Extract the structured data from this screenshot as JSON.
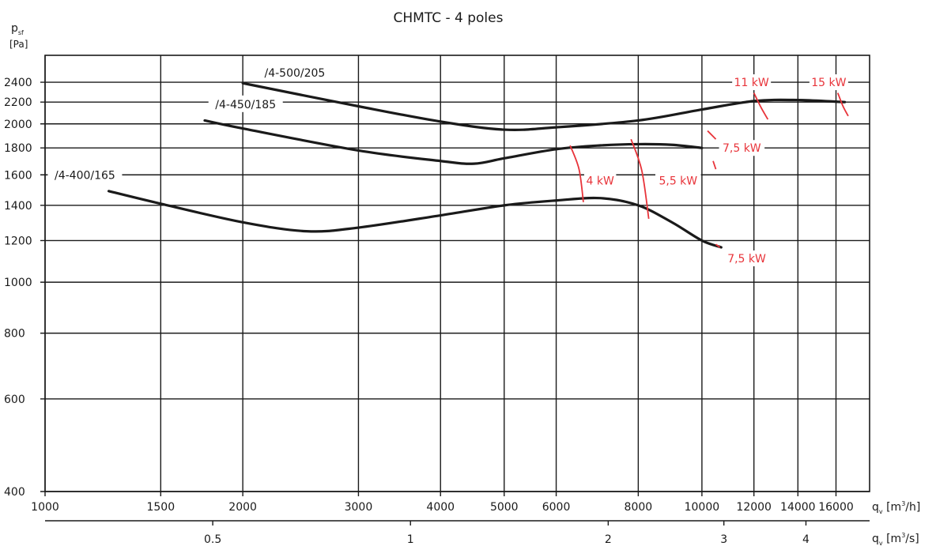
{
  "chart_data": {
    "type": "line",
    "title": "CHMTC  -  4 poles",
    "y_axis": {
      "symbol": "p",
      "subscript": "sf",
      "unit": "[Pa]",
      "scale": "log",
      "range": [
        400,
        2700
      ],
      "ticks": [
        400,
        600,
        800,
        1000,
        1200,
        1400,
        1600,
        1800,
        2000,
        2200,
        2400
      ]
    },
    "x_axis": {
      "symbol": "q",
      "subscript": "v",
      "unit_pre": "[m",
      "unit_sup": "3",
      "unit_post": "/h]",
      "scale": "log",
      "range": [
        1000,
        18000
      ],
      "ticks": [
        1000,
        1500,
        2000,
        3000,
        4000,
        5000,
        6000,
        8000,
        10000,
        12000,
        14000,
        16000
      ]
    },
    "x2_axis": {
      "symbol": "q",
      "subscript": "v",
      "unit_pre": "[m",
      "unit_sup": "3",
      "unit_post": "/s]",
      "ticks": [
        0.5,
        1,
        2,
        3,
        4
      ],
      "tick_labels": [
        "0.5",
        "1",
        "2",
        "3",
        "4"
      ]
    },
    "grid": true,
    "series": [
      {
        "name": "/4-500/205",
        "color": "#1a1a1a",
        "points": [
          [
            2000,
            2390
          ],
          [
            3000,
            2160
          ],
          [
            4000,
            2020
          ],
          [
            5000,
            1950
          ],
          [
            6000,
            1970
          ],
          [
            8000,
            2030
          ],
          [
            10000,
            2130
          ],
          [
            12000,
            2210
          ],
          [
            14000,
            2220
          ],
          [
            16500,
            2200
          ]
        ]
      },
      {
        "name": "/4-450/185",
        "color": "#1a1a1a",
        "points": [
          [
            1750,
            2030
          ],
          [
            2000,
            1960
          ],
          [
            3000,
            1780
          ],
          [
            4000,
            1700
          ],
          [
            4500,
            1680
          ],
          [
            5000,
            1720
          ],
          [
            6000,
            1790
          ],
          [
            7000,
            1820
          ],
          [
            8000,
            1830
          ],
          [
            9000,
            1825
          ],
          [
            10000,
            1800
          ]
        ]
      },
      {
        "name": "/4-400/165",
        "color": "#1a1a1a",
        "points": [
          [
            1250,
            1490
          ],
          [
            1500,
            1410
          ],
          [
            2000,
            1300
          ],
          [
            2500,
            1250
          ],
          [
            3000,
            1270
          ],
          [
            4000,
            1340
          ],
          [
            5000,
            1400
          ],
          [
            6000,
            1430
          ],
          [
            7000,
            1445
          ],
          [
            8000,
            1400
          ],
          [
            9000,
            1300
          ],
          [
            10000,
            1200
          ],
          [
            10700,
            1165
          ]
        ]
      }
    ],
    "motor_lines": [
      {
        "label": "4 kW",
        "color": "#e8343a",
        "points": [
          [
            6300,
            1820
          ],
          [
            6500,
            1640
          ],
          [
            6600,
            1420
          ]
        ],
        "label_at": [
          7000,
          1560
        ]
      },
      {
        "label": "5,5 kW",
        "color": "#e8343a",
        "points": [
          [
            7800,
            1870
          ],
          [
            8100,
            1630
          ],
          [
            8300,
            1320
          ]
        ],
        "label_at": [
          9200,
          1560
        ]
      },
      {
        "label": "7,5 kW",
        "color": "#e8343a",
        "points": [
          [
            10200,
            1940
          ],
          [
            10500,
            1870
          ]
        ],
        "label_at": [
          11500,
          1800
        ]
      },
      {
        "label": "7,5 kW",
        "color": "#e8343a",
        "points": [
          [
            10400,
            1700
          ],
          [
            10500,
            1640
          ]
        ],
        "label_at": null
      },
      {
        "label": "7,5 kW",
        "color": "#e8343a",
        "points": [
          [
            10500,
            1180
          ],
          [
            10650,
            1165
          ]
        ],
        "label_at": [
          11700,
          1110
        ]
      },
      {
        "label": "11 kW",
        "color": "#e8343a",
        "points": [
          [
            12000,
            2290
          ],
          [
            12300,
            2150
          ],
          [
            12600,
            2040
          ]
        ],
        "label_at": [
          11900,
          2400
        ]
      },
      {
        "label": "15 kW",
        "color": "#e8343a",
        "points": [
          [
            16100,
            2290
          ],
          [
            16400,
            2160
          ],
          [
            16700,
            2070
          ]
        ],
        "label_at": [
          15600,
          2400
        ]
      }
    ],
    "series_labels": [
      {
        "text": "/4-500/205",
        "at": [
          2400,
          2500
        ]
      },
      {
        "text": "/4-450/185",
        "at": [
          2020,
          2180
        ]
      },
      {
        "text": "/4-400/165",
        "at": [
          1150,
          1600
        ]
      }
    ]
  }
}
